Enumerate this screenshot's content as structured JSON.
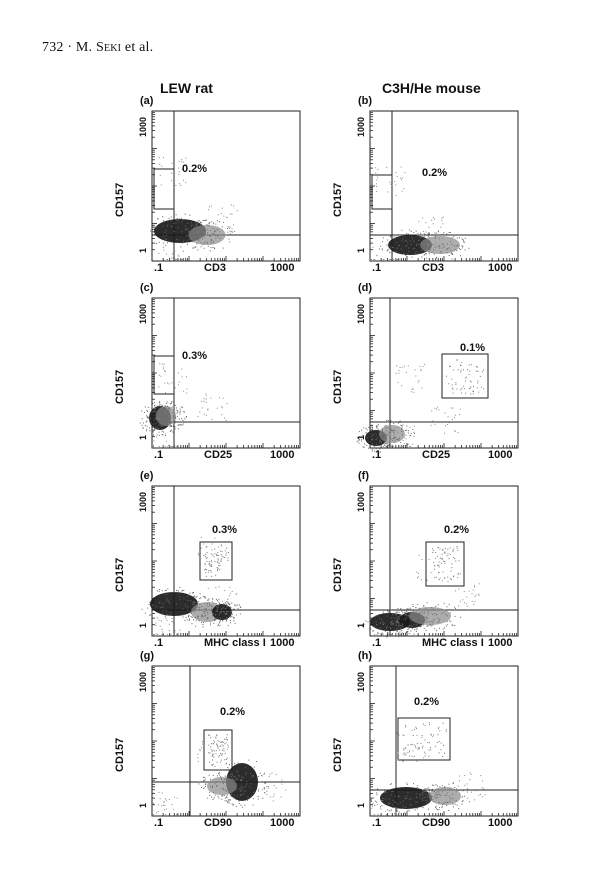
{
  "header": {
    "page_number": "732",
    "separator": "·",
    "author_initial": "M. ",
    "author_surname": "Seki",
    "author_suffix": " et al."
  },
  "columns": {
    "left": "LEW rat",
    "right": "C3H/He mouse"
  },
  "axis_ticks": {
    "low": ".1",
    "mid": "1",
    "high": "1000"
  },
  "ylabel": "CD157",
  "panels": [
    {
      "id": "(a)",
      "xlabel": "CD3",
      "percent": "0.2%",
      "row": 0,
      "col": 0
    },
    {
      "id": "(b)",
      "xlabel": "CD3",
      "percent": "0.2%",
      "row": 0,
      "col": 1
    },
    {
      "id": "(c)",
      "xlabel": "CD25",
      "percent": "0.3%",
      "row": 1,
      "col": 0
    },
    {
      "id": "(d)",
      "xlabel": "CD25",
      "percent": "0.1%",
      "row": 1,
      "col": 1
    },
    {
      "id": "(e)",
      "xlabel": "MHC class I",
      "percent": "0.3%",
      "row": 2,
      "col": 0
    },
    {
      "id": "(f)",
      "xlabel": "MHC class I",
      "percent": "0.2%",
      "row": 2,
      "col": 1
    },
    {
      "id": "(g)",
      "xlabel": "CD90",
      "percent": "0.2%",
      "row": 3,
      "col": 0
    },
    {
      "id": "(h)",
      "xlabel": "CD90",
      "percent": "0.2%",
      "row": 3,
      "col": 1
    }
  ]
}
